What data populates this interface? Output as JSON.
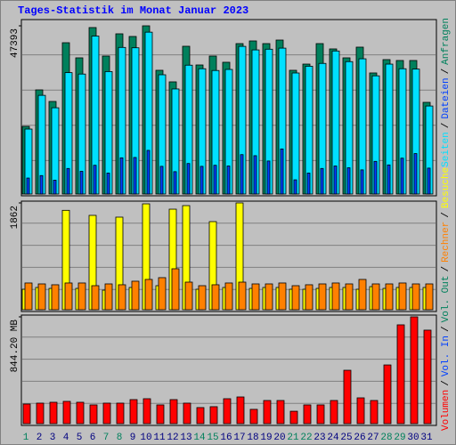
{
  "title": "Tages-Statistik im Monat Januar 2023",
  "legend_separator": "/",
  "chart_data": [
    {
      "type": "bar",
      "categories": [
        "1",
        "2",
        "3",
        "4",
        "5",
        "6",
        "7",
        "8",
        "9",
        "10",
        "11",
        "12",
        "13",
        "14",
        "15",
        "16",
        "17",
        "18",
        "19",
        "20",
        "21",
        "22",
        "23",
        "24",
        "25",
        "26",
        "27",
        "28",
        "29",
        "30",
        "31"
      ],
      "category_colors": [
        "#00805c",
        "#000080",
        "#000080",
        "#000080",
        "#000080",
        "#000080",
        "#00805c",
        "#00805c",
        "#000080",
        "#000080",
        "#000080",
        "#000080",
        "#000080",
        "#00805c",
        "#00805c",
        "#000080",
        "#000080",
        "#000080",
        "#000080",
        "#000080",
        "#00805c",
        "#00805c",
        "#000080",
        "#000080",
        "#000080",
        "#000080",
        "#000080",
        "#00805c",
        "#00805c",
        "#000080",
        "#000080"
      ],
      "ylim": [
        0,
        47393
      ],
      "yticks": [
        47393
      ],
      "series": [
        {
          "name": "Anfragen",
          "color": "#00805c",
          "values": [
            19060,
            29340,
            26080,
            42630,
            38370,
            46900,
            38870,
            45140,
            44390,
            47393,
            34860,
            31600,
            41630,
            36360,
            38870,
            37120,
            42380,
            43130,
            42380,
            43380,
            34860,
            36610,
            42380,
            40880,
            38370,
            41380,
            34110,
            37870,
            37620,
            37620,
            25830
          ]
        },
        {
          "name": "Dateien",
          "color": "#0040ff",
          "values": [
            4500,
            5200,
            3900,
            7200,
            6400,
            8100,
            5900,
            10200,
            10300,
            12300,
            7800,
            6300,
            8600,
            7800,
            8100,
            7900,
            11100,
            10800,
            9300,
            12700,
            4000,
            5900,
            7200,
            7900,
            7400,
            6800,
            9200,
            8200,
            10100,
            11400,
            7300
          ]
        },
        {
          "name": "Seiten",
          "color": "#00e0ff",
          "values": [
            18300,
            27800,
            24300,
            34200,
            33800,
            44500,
            34500,
            41300,
            41200,
            45600,
            33600,
            29600,
            36300,
            35300,
            34800,
            35100,
            41600,
            40600,
            40800,
            41100,
            34100,
            36000,
            36800,
            40300,
            37300,
            38100,
            33300,
            36600,
            35300,
            35200,
            24800
          ]
        }
      ]
    },
    {
      "type": "bar",
      "ylim": [
        0,
        1862
      ],
      "yticks": [
        1862
      ],
      "series": [
        {
          "name": "Besuche",
          "color": "#ffff00",
          "values": [
            357,
            388,
            372,
            1733,
            372,
            1645,
            341,
            1614,
            388,
            1846,
            419,
            1753,
            1815,
            357,
            1536,
            388,
            1862,
            372,
            388,
            388,
            357,
            357,
            372,
            388,
            388,
            357,
            403,
            372,
            388,
            388,
            388
          ]
        },
        {
          "name": "Rechner",
          "color": "#ff8000",
          "values": [
            466,
            450,
            435,
            466,
            466,
            419,
            450,
            435,
            497,
            528,
            559,
            714,
            481,
            419,
            435,
            466,
            481,
            450,
            450,
            466,
            419,
            435,
            450,
            466,
            450,
            528,
            450,
            450,
            466,
            450,
            450
          ]
        }
      ]
    },
    {
      "type": "bar",
      "ylim": [
        0,
        844.2
      ],
      "yticks": [
        {
          "value": 844.2,
          "label": "844.20 MB"
        }
      ],
      "series": [
        {
          "name": "Volumen",
          "color": "#ff0000",
          "values": [
            155,
            162,
            169,
            176,
            169,
            148,
            162,
            162,
            190,
            197,
            148,
            190,
            162,
            127,
            134,
            197,
            211,
            113,
            183,
            183,
            98,
            148,
            148,
            183,
            422,
            204,
            183,
            464,
            781,
            844.2,
            739
          ]
        }
      ],
      "legend": [
        {
          "name": "Vol. In",
          "color": "#0040ff"
        },
        {
          "name": "Vol. Out",
          "color": "#00805c"
        }
      ]
    }
  ]
}
